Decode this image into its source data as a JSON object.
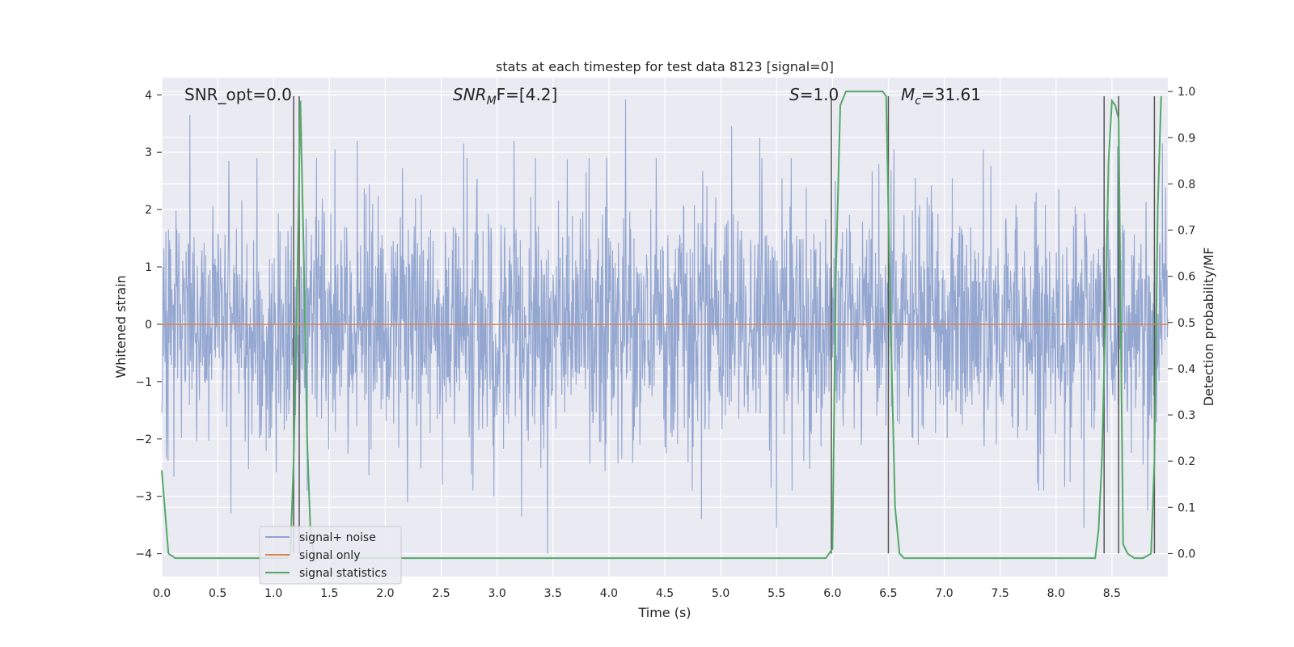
{
  "chart_data": {
    "type": "line",
    "title": "stats at each timestep for test data 8123 [signal=0]",
    "xlabel": "Time (s)",
    "ylabel": "Whitened strain",
    "y2label": "Detection probability/MF",
    "xlim": [
      0.0,
      9.0
    ],
    "ylim": [
      -4.4,
      4.3
    ],
    "y2lim": [
      -0.05,
      1.03
    ],
    "xticks": [
      "0.0",
      "0.5",
      "1.0",
      "1.5",
      "2.0",
      "2.5",
      "3.0",
      "3.5",
      "4.0",
      "4.5",
      "5.0",
      "5.5",
      "6.0",
      "6.5",
      "7.0",
      "7.5",
      "8.0",
      "8.5"
    ],
    "yticks": [
      "4",
      "3",
      "2",
      "1",
      "0",
      "−1",
      "−2",
      "−3",
      "−4"
    ],
    "y2ticks": [
      "1.0",
      "0.9",
      "0.8",
      "0.7",
      "0.6",
      "0.5",
      "0.4",
      "0.3",
      "0.2",
      "0.1",
      "0.0"
    ],
    "grid": true,
    "legend_position": "lower-left",
    "annotations": {
      "snr_opt": "SNR_opt=0.0",
      "snr_mf_main": "SNR",
      "snr_mf_sub": "M",
      "snr_mf_rest": "F=[4.2]",
      "s_main": "S",
      "s_rest": "=1.0",
      "mc_main": "M",
      "mc_sub": "c",
      "mc_rest": "=31.61"
    },
    "series": [
      {
        "name": "signal+ noise",
        "color": "#8fa3cf",
        "style": "dense noise, sampled 2048 Hz, std ~1.0",
        "envelope_peaks": [
          [
            0.25,
            3.65
          ],
          [
            0.6,
            2.85
          ],
          [
            0.85,
            2.9
          ],
          [
            1.55,
            3.05
          ],
          [
            1.75,
            3.2
          ],
          [
            2.7,
            3.15
          ],
          [
            3.15,
            3.2
          ],
          [
            4.15,
            3.92
          ],
          [
            5.1,
            3.45
          ],
          [
            5.35,
            3.25
          ],
          [
            6.55,
            3.05
          ],
          [
            7.35,
            3.05
          ],
          [
            8.55,
            3.1
          ],
          [
            8.95,
            3.15
          ]
        ],
        "envelope_troughs": [
          [
            0.62,
            -3.3
          ],
          [
            1.3,
            -2.9
          ],
          [
            2.2,
            -3.1
          ],
          [
            2.97,
            -3.0
          ],
          [
            3.22,
            -3.35
          ],
          [
            3.45,
            -4.0
          ],
          [
            4.83,
            -3.4
          ],
          [
            5.5,
            -3.55
          ],
          [
            8.25,
            -3.55
          ],
          [
            8.82,
            -3.25
          ]
        ]
      },
      {
        "name": "signal only",
        "color": "#dd8452",
        "x": [
          0.0,
          9.0
        ],
        "y": [
          0.0,
          0.0
        ]
      },
      {
        "name": "signal statistics",
        "color": "#55a868",
        "x": [
          0.0,
          0.06,
          0.12,
          1.12,
          1.15,
          1.18,
          1.21,
          1.24,
          1.27,
          1.3,
          1.33,
          1.36,
          1.4,
          5.94,
          5.97,
          6.0,
          6.03,
          6.07,
          6.12,
          6.45,
          6.48,
          6.52,
          6.56,
          6.6,
          6.64,
          8.35,
          8.38,
          8.41,
          8.44,
          8.47,
          8.5,
          8.53,
          8.56,
          8.6,
          8.64,
          8.7,
          8.78,
          8.85,
          8.88,
          8.91,
          8.94
        ],
        "y": [
          0.18,
          0.0,
          -0.01,
          -0.01,
          0.0,
          0.2,
          0.55,
          0.98,
          0.65,
          0.25,
          0.05,
          0.0,
          -0.01,
          -0.01,
          0.0,
          0.01,
          0.6,
          0.97,
          1.0,
          1.0,
          0.99,
          0.5,
          0.1,
          0.0,
          -0.01,
          -0.01,
          0.05,
          0.2,
          0.5,
          0.85,
          0.98,
          0.97,
          0.94,
          0.02,
          0.0,
          -0.01,
          -0.01,
          0.0,
          0.2,
          0.75,
          0.99
        ]
      }
    ],
    "vertical_markers_s": [
      1.18,
      1.23,
      5.99,
      6.5,
      8.43,
      8.56,
      8.88
    ]
  }
}
